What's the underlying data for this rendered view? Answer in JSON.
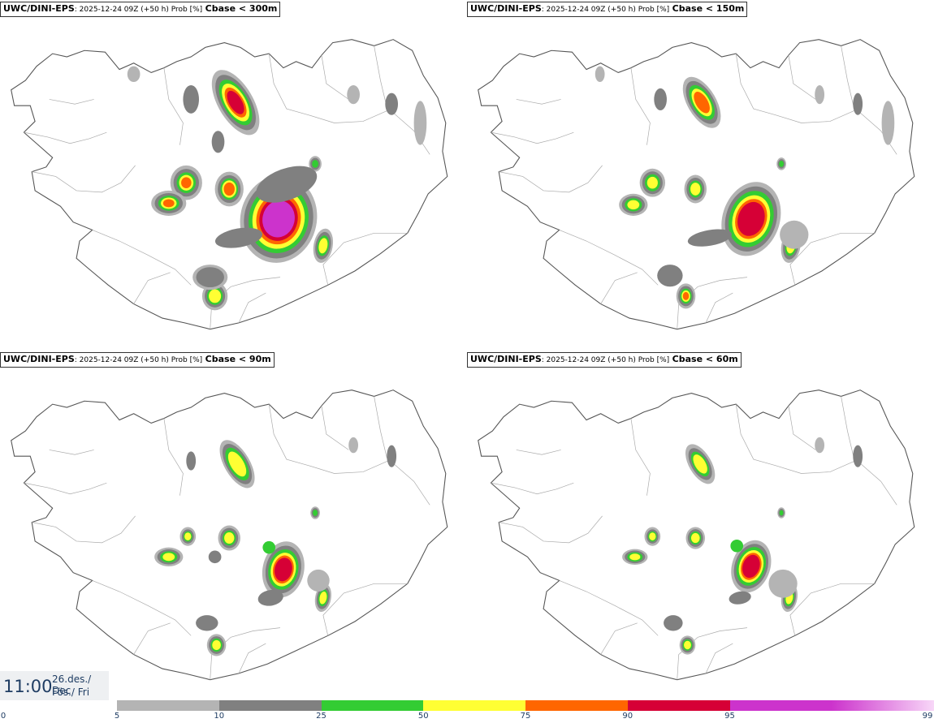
{
  "panels": [
    {
      "model": "UWC/DINI-EPS",
      "meta": ": 2025-12-24 09Z (+50 h) Prob [%]",
      "threshold": "Cbase < 300m"
    },
    {
      "model": "UWC/DINI-EPS",
      "meta": ": 2025-12-24 09Z (+50 h) Prob [%]",
      "threshold": "Cbase < 150m"
    },
    {
      "model": "UWC/DINI-EPS",
      "meta": ": 2025-12-24 09Z (+50 h) Prob [%]",
      "threshold": "Cbase < 90m"
    },
    {
      "model": "UWC/DINI-EPS",
      "meta": ": 2025-12-24 09Z (+50 h) Prob [%]",
      "threshold": "Cbase < 60m"
    }
  ],
  "valid_time": {
    "clock": "11:00",
    "date_line1": "26.des./ Dec",
    "date_line2": "Fös./ Fri"
  },
  "legend": {
    "ticks": [
      "0",
      "5",
      "10",
      "25",
      "50",
      "75",
      "90",
      "95",
      "99"
    ],
    "colors": [
      "#b4b4b4",
      "#808080",
      "#33cc33",
      "#ffff33",
      "#ff6600",
      "#d60036",
      "#cc33cc",
      "#f5c0f5"
    ]
  }
}
